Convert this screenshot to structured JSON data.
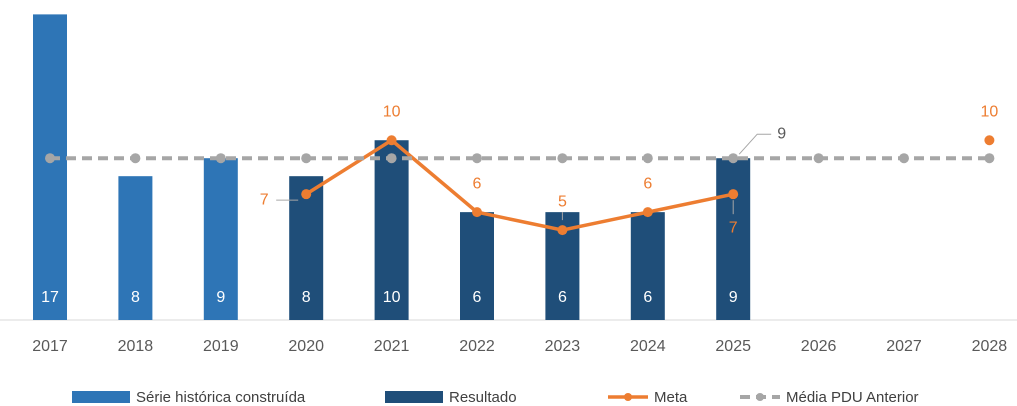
{
  "chart_data": {
    "type": "bar",
    "categories": [
      "2017",
      "2018",
      "2019",
      "2020",
      "2021",
      "2022",
      "2023",
      "2024",
      "2025",
      "2026",
      "2027",
      "2028"
    ],
    "ylim": [
      0,
      17.8
    ],
    "series": [
      {
        "name": "Série histórica construída",
        "type": "bar",
        "color": "#2e75b6",
        "values": [
          17,
          8,
          9,
          null,
          null,
          null,
          null,
          null,
          null,
          null,
          null,
          null
        ]
      },
      {
        "name": "Resultado",
        "type": "bar",
        "color": "#1f4e79",
        "values": [
          null,
          null,
          null,
          8,
          10,
          6,
          6,
          6,
          9,
          null,
          null,
          null
        ]
      },
      {
        "name": "Meta",
        "type": "line",
        "color": "#ed7d31",
        "values": [
          null,
          null,
          null,
          7,
          10,
          6,
          5,
          6,
          7,
          null,
          null,
          10
        ]
      },
      {
        "name": "Média PDU Anterior",
        "type": "dashed-line",
        "color": "#a6a6a6",
        "values": [
          9,
          9,
          9,
          9,
          9,
          9,
          9,
          9,
          9,
          9,
          9,
          9
        ]
      }
    ]
  }
}
